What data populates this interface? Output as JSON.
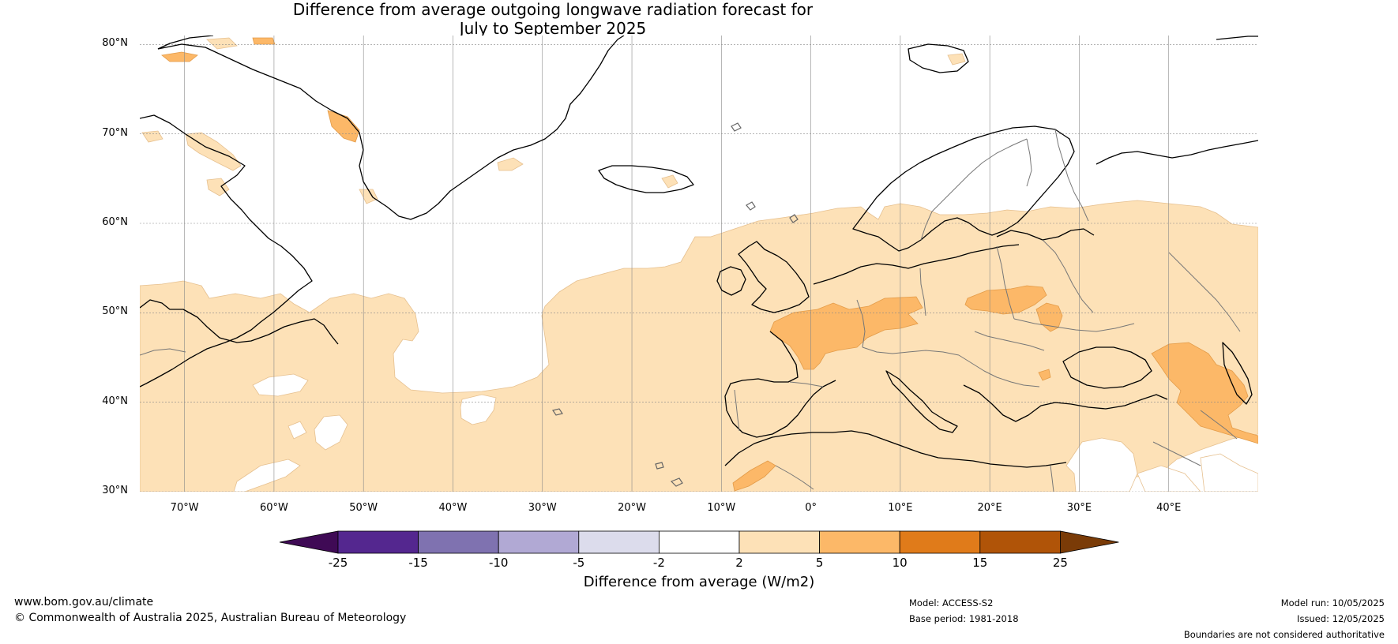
{
  "title": {
    "line1": "Difference from average outgoing longwave radiation forecast for",
    "line2": "July to September 2025"
  },
  "map": {
    "lat_labels": [
      "80°N",
      "70°N",
      "60°N",
      "50°N",
      "40°N",
      "30°N"
    ],
    "lon_labels": [
      "70°W",
      "60°W",
      "50°W",
      "40°W",
      "30°W",
      "20°W",
      "10°W",
      "0°",
      "10°E",
      "20°E",
      "30°E",
      "40°E"
    ],
    "extent": {
      "lon_min": -75,
      "lon_max": 50,
      "lat_min": 30,
      "lat_max": 81
    }
  },
  "colorbar": {
    "ticks": [
      "-25",
      "-15",
      "-10",
      "-5",
      "-2",
      "2",
      "5",
      "10",
      "15",
      "25"
    ],
    "colors": [
      "#3f0a55",
      "#54278f",
      "#7f72b0",
      "#b1a9d4",
      "#dcdcec",
      "#ffffff",
      "#fde1b7",
      "#fcb868",
      "#e07b1a",
      "#b05408",
      "#7a3b07"
    ],
    "title": "Difference from average (W/m2)"
  },
  "footer": {
    "website": "www.bom.gov.au/climate",
    "copyright": "© Commonwealth of Australia 2025, Australian Bureau of Meteorology",
    "model": "Model: ACCESS-S2",
    "base_period": "Base period: 1981-2018",
    "model_run": "Model run: 10/05/2025",
    "issued": "Issued: 12/05/2025",
    "disclaimer": "Boundaries are not considered authoritative"
  }
}
